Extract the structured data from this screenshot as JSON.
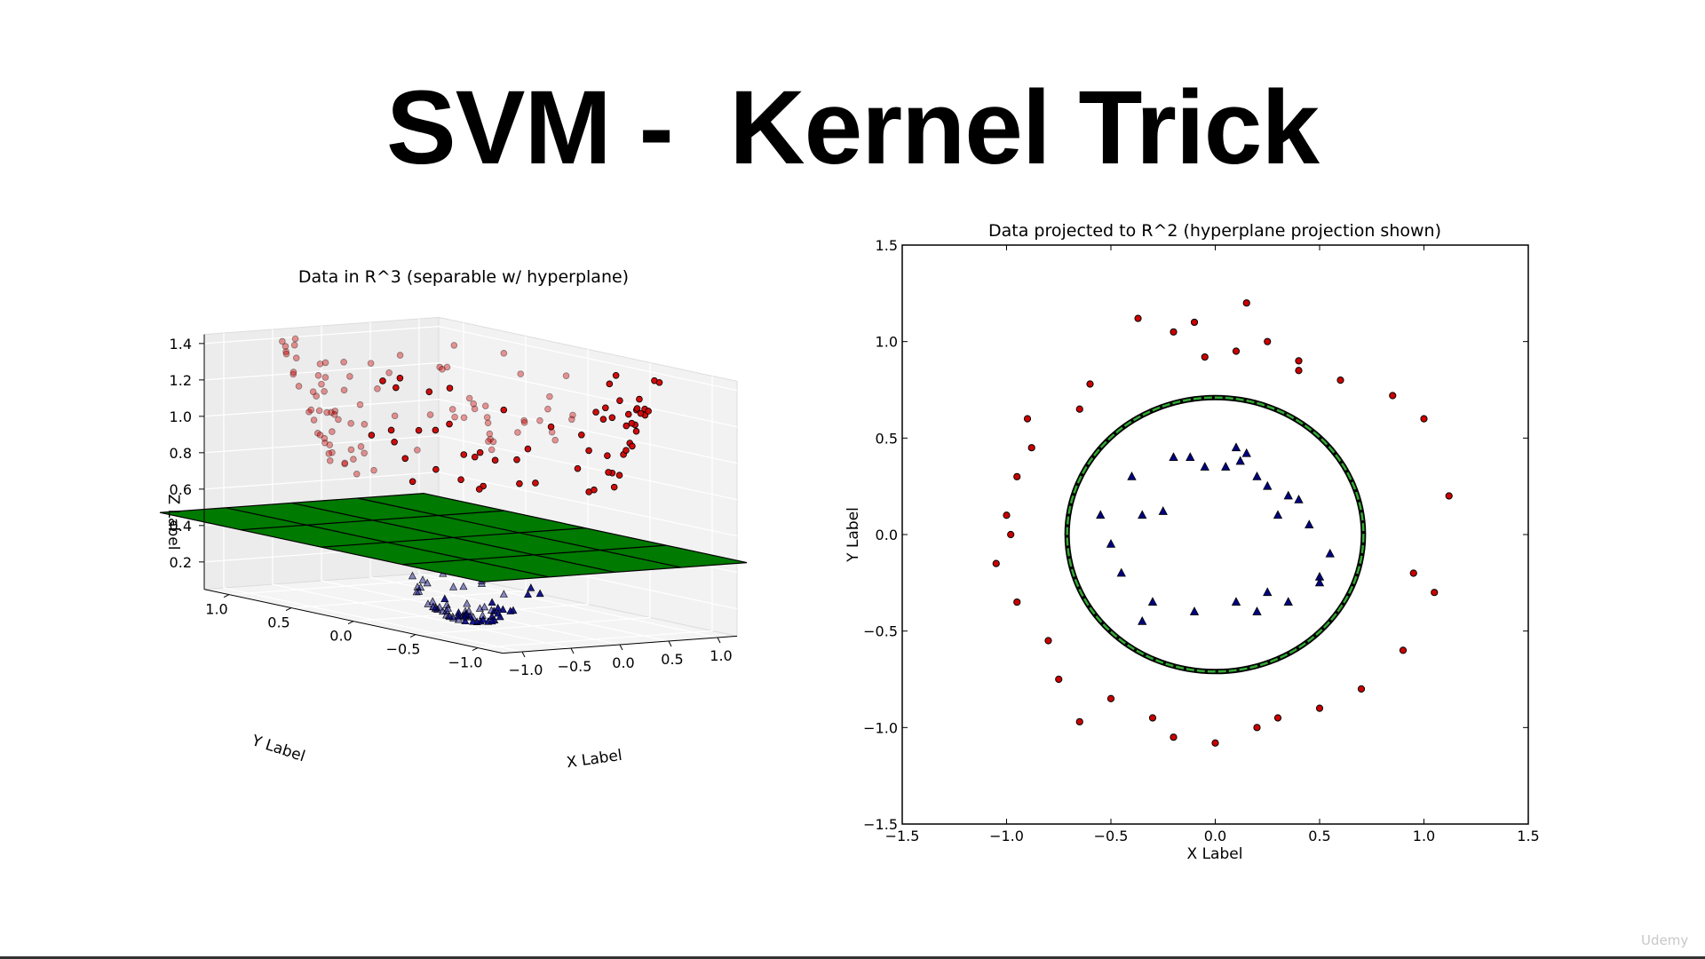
{
  "slide": {
    "title": "SVM -  Kernel Trick"
  },
  "watermark": "Udemy",
  "chart_data": [
    {
      "type": "scatter3d",
      "title": "Data in R^3 (separable w/ hyperplane)",
      "xlabel": "X Label",
      "ylabel": "Y Label",
      "zlabel": "Z Label",
      "xticks": [
        "−1.0",
        "−0.5",
        "0.0",
        "0.5",
        "1.0"
      ],
      "yticks": [
        "1.0",
        "0.5",
        "0.0",
        "−0.5",
        "−1.0"
      ],
      "zticks": [
        "0.2",
        "0.4",
        "0.6",
        "0.8",
        "1.0",
        "1.2",
        "1.4"
      ],
      "zlim": [
        0.05,
        1.45
      ],
      "hyperplane_z": 0.45,
      "series": [
        {
          "marker": "circle",
          "color": "#cc0000",
          "z_formula": "x^2 + y^2",
          "radius_range": [
            0.9,
            1.2
          ]
        },
        {
          "marker": "triangle",
          "color": "#000080",
          "z_formula": "x^2 + y^2",
          "radius_range": [
            0.1,
            0.45
          ]
        }
      ]
    },
    {
      "type": "scatter",
      "title": "Data projected to R^2 (hyperplane projection shown)",
      "xlabel": "X Label",
      "ylabel": "Y Label",
      "xlim": [
        -1.5,
        1.5
      ],
      "ylim": [
        -1.5,
        1.5
      ],
      "xticks": [
        "−1.5",
        "−1.0",
        "−0.5",
        "0.0",
        "0.5",
        "1.0",
        "1.5"
      ],
      "yticks": [
        "−1.5",
        "−1.0",
        "−0.5",
        "0.0",
        "0.5",
        "1.0",
        "1.5"
      ],
      "boundary": {
        "shape": "circle",
        "center": [
          0,
          0
        ],
        "radius": 0.71,
        "color": "#33aa33"
      },
      "series": [
        {
          "marker": "circle",
          "color": "#cc0000",
          "x": [
            0.15,
            -0.1,
            -0.37,
            -0.05,
            0.1,
            0.4,
            -0.6,
            -0.65,
            -0.9,
            -0.88,
            -0.95,
            -1.0,
            -1.05,
            -0.95,
            -0.8,
            -0.75,
            -0.5,
            -0.3,
            0.0,
            0.2,
            0.5,
            0.7,
            0.9,
            1.05,
            1.12,
            1.0,
            0.85,
            0.6,
            0.4,
            0.25,
            -0.2,
            -0.65,
            -0.98,
            0.95,
            -0.2,
            0.3
          ],
          "y": [
            1.2,
            1.1,
            1.12,
            0.92,
            0.95,
            0.9,
            0.78,
            0.65,
            0.6,
            0.45,
            0.3,
            0.1,
            -0.15,
            -0.35,
            -0.55,
            -0.75,
            -0.85,
            -0.95,
            -1.08,
            -1.0,
            -0.9,
            -0.8,
            -0.6,
            -0.3,
            0.2,
            0.6,
            0.72,
            0.8,
            0.85,
            1.0,
            1.05,
            -0.97,
            0.0,
            -0.2,
            -1.05,
            -0.95
          ]
        },
        {
          "marker": "triangle",
          "color": "#000080",
          "x": [
            -0.12,
            -0.05,
            0.1,
            0.15,
            0.12,
            0.2,
            -0.4,
            -0.35,
            -0.55,
            -0.5,
            -0.45,
            -0.3,
            -0.1,
            0.1,
            0.25,
            0.35,
            0.5,
            0.55,
            0.45,
            0.3,
            0.35,
            0.4,
            0.25,
            0.05,
            -0.2,
            -0.35,
            0.2,
            0.5,
            -0.25
          ],
          "y": [
            0.4,
            0.35,
            0.45,
            0.42,
            0.38,
            0.3,
            0.3,
            0.1,
            0.1,
            -0.05,
            -0.2,
            -0.35,
            -0.4,
            -0.35,
            -0.3,
            -0.35,
            -0.22,
            -0.1,
            0.05,
            0.1,
            0.2,
            0.18,
            0.25,
            0.35,
            0.4,
            -0.45,
            -0.4,
            -0.25,
            0.12
          ]
        }
      ]
    }
  ]
}
